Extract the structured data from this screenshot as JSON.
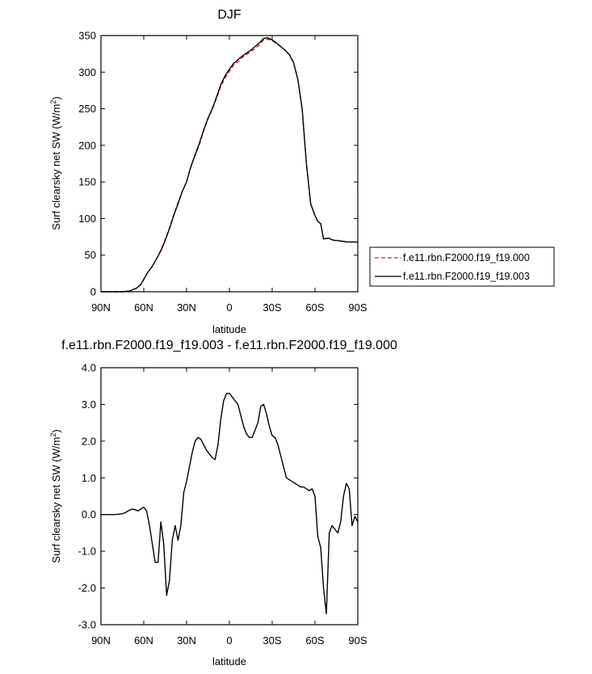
{
  "chart_data": [
    {
      "type": "line",
      "title": "DJF",
      "xlabel": "latitude",
      "ylabel": "Surf clearsky net SW (W/m",
      "ylabel_sup": "2",
      "ylabel_close": ")",
      "xlim": [
        90,
        -90
      ],
      "ylim": [
        0,
        350
      ],
      "x_ticks": [
        90,
        60,
        30,
        0,
        -30,
        -60,
        -90
      ],
      "x_tick_labels": [
        "90N",
        "60N",
        "30N",
        "0",
        "30S",
        "60S",
        "90S"
      ],
      "y_ticks": [
        0,
        50,
        100,
        150,
        200,
        250,
        300,
        350
      ],
      "y_tick_labels": [
        "0",
        "50",
        "100",
        "150",
        "200",
        "250",
        "300",
        "350"
      ],
      "legend_position": "right",
      "series": [
        {
          "name": "f.e11.rbn.F2000.f19_f19.000",
          "color": "#d62020",
          "dash": "dashed",
          "x": [
            90,
            80,
            75,
            70,
            65,
            62,
            60,
            57,
            54,
            51,
            48,
            45,
            42,
            39,
            36,
            33,
            30,
            27,
            24,
            21,
            18,
            15,
            12,
            9,
            6,
            3,
            0,
            -3,
            -6,
            -9,
            -12,
            -15,
            -18,
            -21,
            -24,
            -27,
            -30,
            -33,
            -36,
            -39,
            -42,
            -45,
            -48,
            -51,
            -54,
            -57,
            -60,
            -62,
            -64,
            -66,
            -68,
            -70,
            -72,
            -74,
            -76,
            -78,
            -80,
            -82,
            -84,
            -86,
            -88,
            -90
          ],
          "y": [
            0,
            0,
            0,
            1,
            5,
            10,
            17,
            27,
            35,
            45,
            57,
            71,
            87,
            105,
            122,
            137,
            150,
            170,
            186,
            201,
            220,
            236,
            249,
            264,
            281,
            292,
            301,
            310,
            314,
            320,
            324,
            328,
            332,
            337,
            344,
            345,
            343,
            339,
            335,
            330,
            324,
            313,
            290,
            250,
            175,
            120,
            104,
            96,
            93,
            72,
            73,
            73,
            71,
            70,
            70,
            69,
            69,
            68,
            68,
            68,
            68,
            68
          ]
        },
        {
          "name": "f.e11.rbn.F2000.f19_f19.003",
          "color": "#000000",
          "dash": "solid",
          "x": [
            90,
            80,
            75,
            70,
            65,
            62,
            60,
            57,
            54,
            51,
            48,
            45,
            42,
            39,
            36,
            33,
            30,
            27,
            24,
            21,
            18,
            15,
            12,
            9,
            6,
            3,
            0,
            -3,
            -6,
            -9,
            -12,
            -15,
            -18,
            -21,
            -24,
            -27,
            -30,
            -33,
            -36,
            -39,
            -42,
            -45,
            -48,
            -51,
            -54,
            -57,
            -60,
            -62,
            -64,
            -66,
            -68,
            -70,
            -72,
            -74,
            -76,
            -78,
            -80,
            -82,
            -84,
            -86,
            -88,
            -90
          ],
          "y": [
            0,
            0,
            0,
            1,
            5,
            10,
            17,
            27,
            35,
            45,
            56,
            70,
            86,
            104,
            120,
            137,
            150,
            171,
            187,
            203,
            221,
            237,
            250,
            266,
            283,
            295,
            304,
            312,
            317,
            322,
            326,
            330,
            335,
            340,
            346,
            347,
            344,
            340,
            335,
            330,
            324,
            313,
            290,
            250,
            175,
            120,
            104,
            96,
            93,
            72,
            73,
            73,
            71,
            70,
            70,
            69,
            69,
            68,
            68,
            68,
            68,
            68
          ]
        }
      ]
    },
    {
      "type": "line",
      "title": "f.e11.rbn.F2000.f19_f19.003 - f.e11.rbn.F2000.f19_f19.000",
      "xlabel": "latitude",
      "ylabel": "Surf clearsky net SW (W/m",
      "ylabel_sup": "2",
      "ylabel_close": ")",
      "xlim": [
        90,
        -90
      ],
      "ylim": [
        -3.0,
        4.0
      ],
      "x_ticks": [
        90,
        60,
        30,
        0,
        -30,
        -60,
        -90
      ],
      "x_tick_labels": [
        "90N",
        "60N",
        "30N",
        "0",
        "30S",
        "60S",
        "90S"
      ],
      "y_ticks": [
        -3,
        -2,
        -1,
        0,
        1,
        2,
        3,
        4
      ],
      "y_tick_labels": [
        "-3.0",
        "-2.0",
        "-1.0",
        "0.0",
        "1.0",
        "2.0",
        "3.0",
        "4.0"
      ],
      "series": [
        {
          "color": "#000000",
          "dash": "solid",
          "x": [
            90,
            80,
            75,
            73,
            70,
            68,
            66,
            64,
            62,
            60,
            58,
            56,
            54,
            52,
            50,
            48,
            46,
            44,
            42,
            40,
            38,
            36,
            34,
            32,
            30,
            28,
            26,
            24,
            22,
            20,
            18,
            16,
            14,
            12,
            10,
            8,
            6,
            4,
            2,
            0,
            -2,
            -4,
            -6,
            -8,
            -10,
            -12,
            -14,
            -16,
            -18,
            -20,
            -22,
            -24,
            -26,
            -28,
            -30,
            -32,
            -34,
            -36,
            -38,
            -40,
            -42,
            -44,
            -46,
            -48,
            -50,
            -52,
            -54,
            -56,
            -58,
            -60,
            -62,
            -64,
            -66,
            -68,
            -70,
            -72,
            -74,
            -76,
            -78,
            -80,
            -82,
            -84,
            -86,
            -88,
            -90
          ],
          "y": [
            0.0,
            0.0,
            0.02,
            0.05,
            0.12,
            0.15,
            0.13,
            0.1,
            0.15,
            0.2,
            0.1,
            -0.3,
            -0.8,
            -1.3,
            -1.3,
            -0.2,
            -0.8,
            -2.2,
            -1.8,
            -0.7,
            -0.3,
            -0.7,
            -0.3,
            0.6,
            0.9,
            1.3,
            1.7,
            2.0,
            2.1,
            2.05,
            1.9,
            1.75,
            1.65,
            1.55,
            1.5,
            1.9,
            2.6,
            3.1,
            3.3,
            3.3,
            3.2,
            3.1,
            3.0,
            2.7,
            2.4,
            2.2,
            2.1,
            2.1,
            2.3,
            2.5,
            2.95,
            3.0,
            2.75,
            2.4,
            2.15,
            2.1,
            1.9,
            1.6,
            1.3,
            1.0,
            0.95,
            0.9,
            0.85,
            0.8,
            0.75,
            0.75,
            0.7,
            0.65,
            0.7,
            0.5,
            -0.6,
            -0.9,
            -2.0,
            -2.7,
            -0.5,
            -0.3,
            -0.4,
            -0.5,
            -0.2,
            0.5,
            0.85,
            0.7,
            -0.3,
            -0.05,
            -0.2
          ]
        }
      ]
    }
  ]
}
